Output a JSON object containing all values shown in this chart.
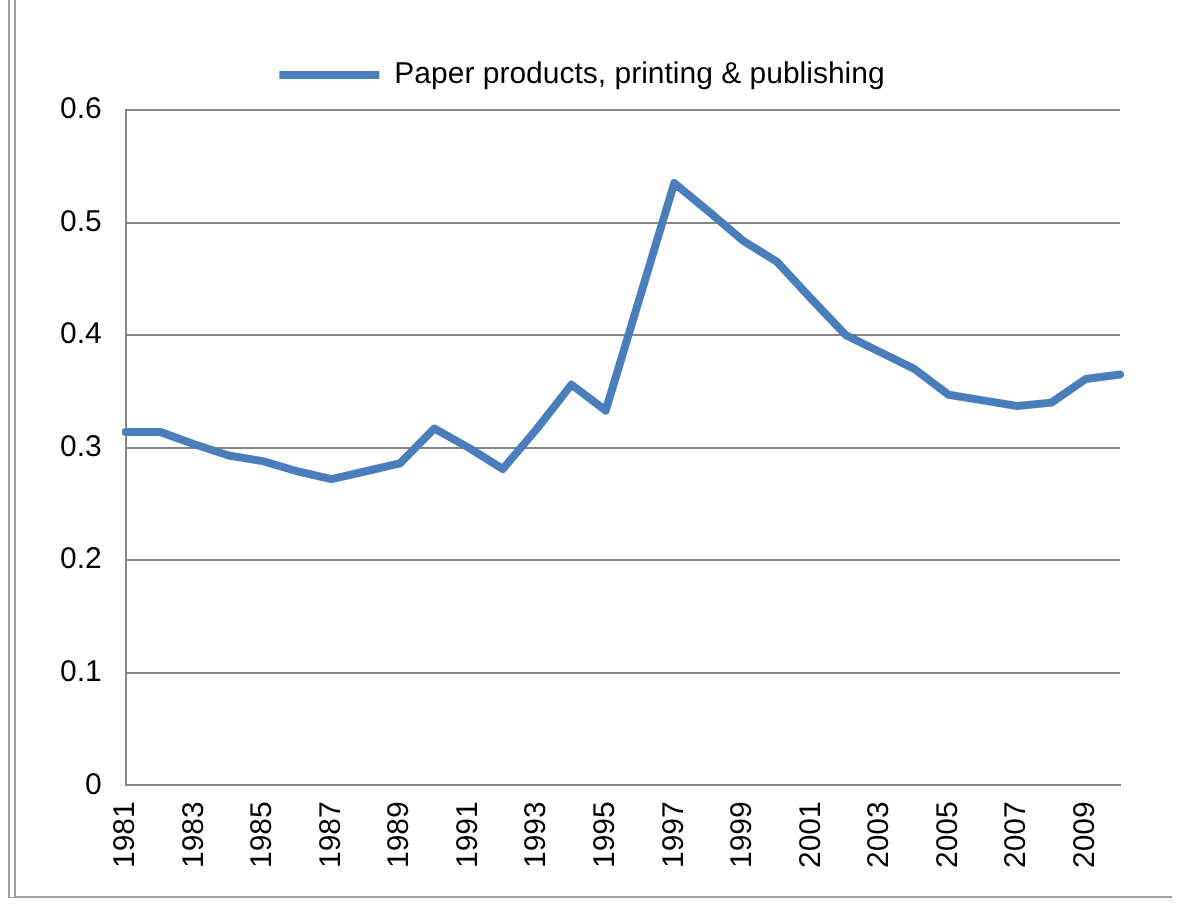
{
  "chart_data": {
    "type": "line",
    "categories": [
      "1981",
      null,
      "1983",
      null,
      "1985",
      null,
      "1987",
      null,
      "1989",
      null,
      "1991",
      null,
      "1993",
      null,
      "1995",
      null,
      "1997",
      null,
      "1999",
      null,
      "2001",
      null,
      "2003",
      null,
      "2005",
      null,
      "2007",
      null,
      "2009",
      null
    ],
    "series": [
      {
        "name": "Paper products, printing & publishing",
        "color": "#4a7ebb",
        "values": [
          0.314,
          0.314,
          0.303,
          0.293,
          0.288,
          0.279,
          0.272,
          0.279,
          0.286,
          0.317,
          0.3,
          0.281,
          0.317,
          0.356,
          0.333,
          0.434,
          0.535,
          0.51,
          0.484,
          0.465,
          0.432,
          0.4,
          0.385,
          0.37,
          0.347,
          0.342,
          0.337,
          0.34,
          0.361,
          0.365
        ]
      }
    ],
    "ylim": [
      0,
      0.6
    ],
    "yticks": [
      0,
      0.1,
      0.2,
      0.3,
      0.4,
      0.5,
      0.6
    ],
    "grid": "y",
    "legend": "top",
    "marker": "none",
    "line_style": "solid"
  }
}
